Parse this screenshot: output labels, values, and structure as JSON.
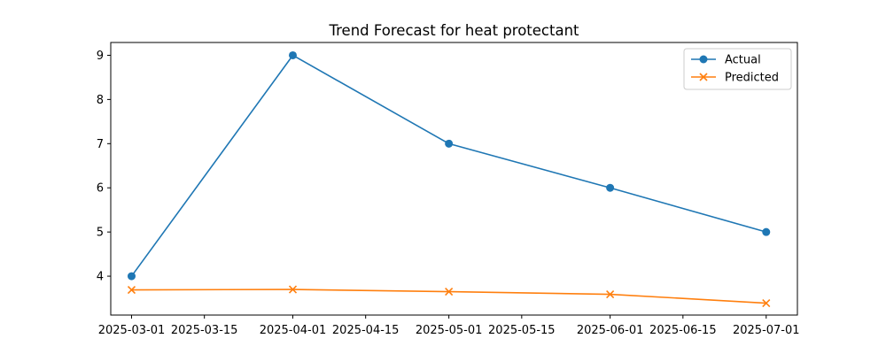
{
  "chart_data": {
    "type": "line",
    "title": "Trend Forecast for heat protectant",
    "xlabel": "",
    "ylabel": "",
    "x_type": "date",
    "xlim": [
      "2025-02-25",
      "2025-07-07"
    ],
    "ylim": [
      3.12,
      9.29
    ],
    "x_ticks": [
      "2025-03-01",
      "2025-03-15",
      "2025-04-01",
      "2025-04-15",
      "2025-05-01",
      "2025-05-15",
      "2025-06-01",
      "2025-06-15",
      "2025-07-01"
    ],
    "y_ticks": [
      4,
      5,
      6,
      7,
      8,
      9
    ],
    "grid": false,
    "legend_position": "top-right",
    "series": [
      {
        "name": "Actual",
        "color": "#1f77b4",
        "marker": "circle",
        "x": [
          "2025-03-01",
          "2025-04-01",
          "2025-05-01",
          "2025-06-01",
          "2025-07-01"
        ],
        "y": [
          4,
          9,
          7,
          6,
          5
        ]
      },
      {
        "name": "Predicted",
        "color": "#ff7f0e",
        "marker": "x",
        "x": [
          "2025-03-01",
          "2025-04-01",
          "2025-05-01",
          "2025-06-01",
          "2025-07-01"
        ],
        "y": [
          3.69,
          3.7,
          3.65,
          3.59,
          3.39
        ]
      }
    ]
  }
}
